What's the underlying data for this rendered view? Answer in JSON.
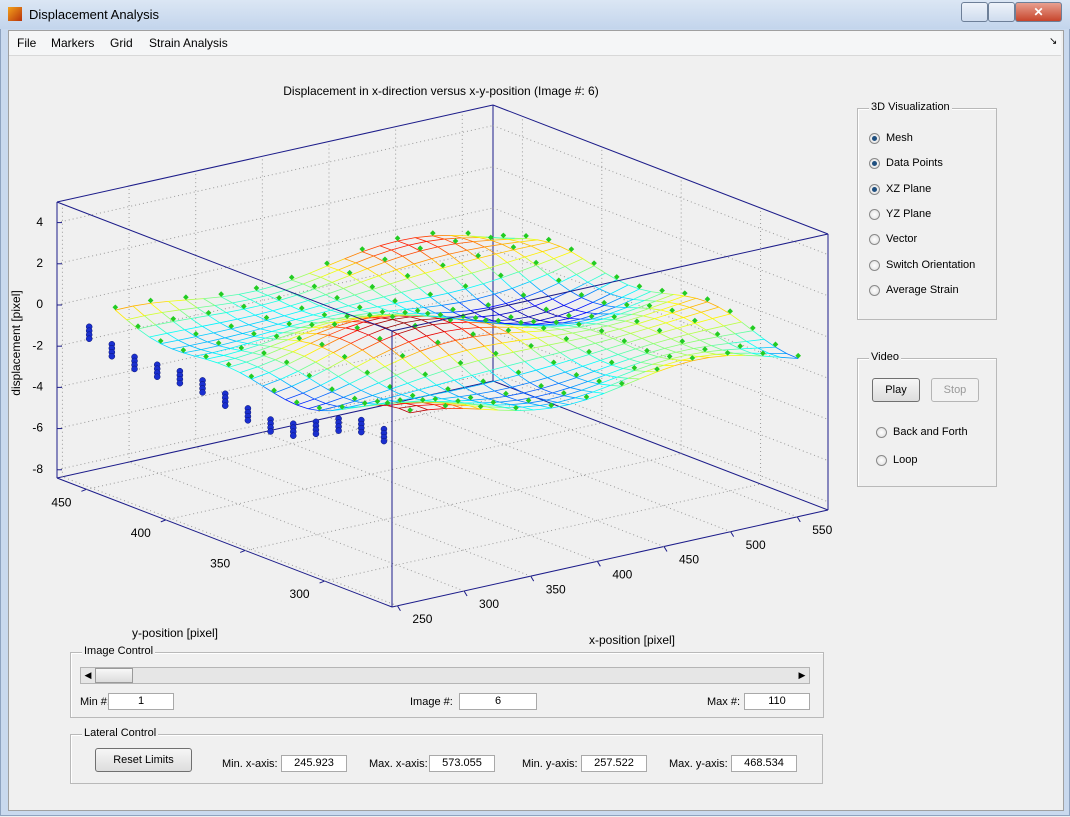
{
  "window": {
    "title": "Displacement Analysis"
  },
  "menu": [
    "File",
    "Markers",
    "Grid",
    "Strain Analysis"
  ],
  "chart_data": {
    "type": "surface3d",
    "title": "Displacement in x-direction versus x-y-position (Image #: 6)",
    "xlabel": "x-position [pixel]",
    "ylabel": "y-position [pixel]",
    "zlabel": "displacement [pixel]",
    "xlim": [
      245.923,
      573.055
    ],
    "ylim": [
      257.522,
      468.534
    ],
    "zlim": [
      -8.4,
      5
    ],
    "xticks": [
      250,
      300,
      350,
      400,
      450,
      500,
      550
    ],
    "yticks": [
      300,
      350,
      400,
      450
    ],
    "zticks": [
      -8,
      -6,
      -4,
      -2,
      0,
      2,
      4
    ],
    "grid": true
  },
  "visualization_panel": {
    "title": "3D Visualization",
    "options": [
      {
        "label": "Mesh",
        "selected": true
      },
      {
        "label": "Data Points",
        "selected": true
      },
      {
        "label": "XZ Plane",
        "selected": true
      },
      {
        "label": "YZ Plane",
        "selected": false
      },
      {
        "label": "Vector",
        "selected": false
      },
      {
        "label": "Switch Orientation",
        "selected": false
      },
      {
        "label": "Average Strain",
        "selected": false
      }
    ]
  },
  "video_panel": {
    "title": "Video",
    "play": "Play",
    "stop": "Stop",
    "options": [
      {
        "label": "Back and Forth",
        "selected": false
      },
      {
        "label": "Loop",
        "selected": false
      }
    ]
  },
  "image_control": {
    "title": "Image Control",
    "min_label": "Min #:",
    "min": 1,
    "image_label": "Image #:",
    "image": 6,
    "max_label": "Max #:",
    "max": 110
  },
  "lateral_control": {
    "title": "Lateral Control",
    "button": "Reset Limits",
    "min_x_label": "Min. x-axis:",
    "max_x_label": "Max. x-axis:",
    "min_y_label": "Min. y-axis:",
    "max_y_label": "Max. y-axis:"
  }
}
